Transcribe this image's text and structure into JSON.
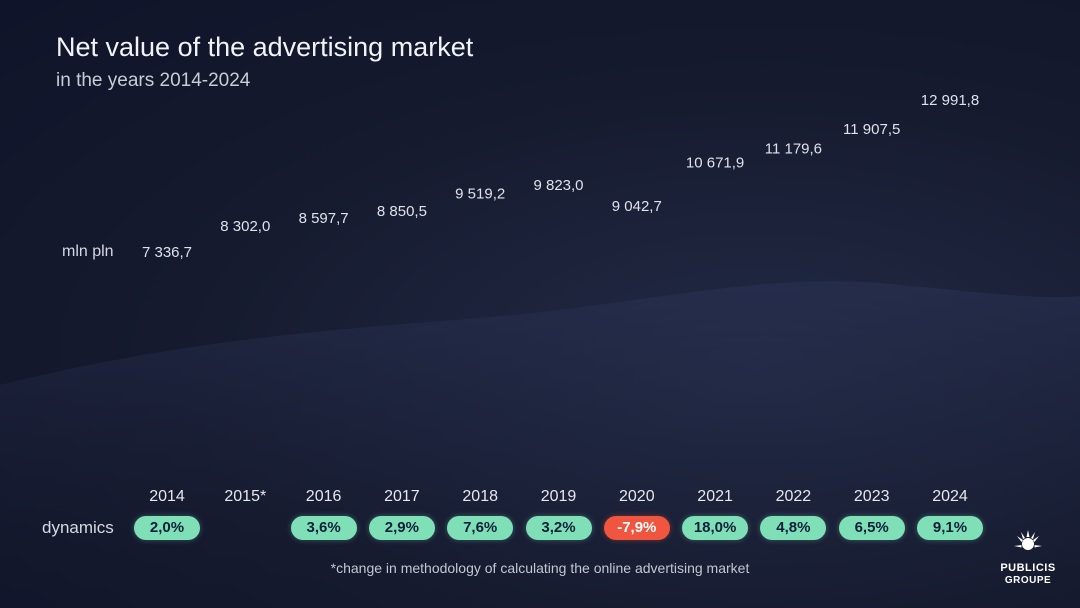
{
  "title": "Net value of the advertising market",
  "subtitle": "in the years 2014-2024",
  "unit_label": "mln pln",
  "dynamics_label": "dynamics",
  "footnote": "*change in methodology of calculating the online advertising market",
  "logo": {
    "line1": "PUBLICIS",
    "line2": "GROUPE"
  },
  "colors": {
    "bar_top": "#f58a3c",
    "bar_bottom": "#fb5a6a",
    "badge_positive": "#7fe0b8",
    "badge_negative": "#f0553f"
  },
  "chart_data": {
    "type": "bar",
    "categories": [
      "2014",
      "2015*",
      "2016",
      "2017",
      "2018",
      "2019",
      "2020",
      "2021",
      "2022",
      "2023",
      "2024"
    ],
    "values": [
      7336.7,
      8302.0,
      8597.7,
      8850.5,
      9519.2,
      9823.0,
      9042.7,
      10671.9,
      11179.6,
      11907.5,
      12991.8
    ],
    "value_labels": [
      "7 336,7",
      "8 302,0",
      "8 597,7",
      "8 850,5",
      "9 519,2",
      "9 823,0",
      "9 042,7",
      "10 671,9",
      "11 179,6",
      "11 907,5",
      "12 991,8"
    ],
    "dynamics": [
      "2,0%",
      "",
      "3,6%",
      "2,9%",
      "7,6%",
      "3,2%",
      "-7,9%",
      "18,0%",
      "4,8%",
      "6,5%",
      "9,1%"
    ],
    "dynamics_negative": [
      false,
      false,
      false,
      false,
      false,
      false,
      true,
      false,
      false,
      false,
      false
    ],
    "ylabel": "mln pln",
    "grid": false,
    "legend": "none"
  }
}
